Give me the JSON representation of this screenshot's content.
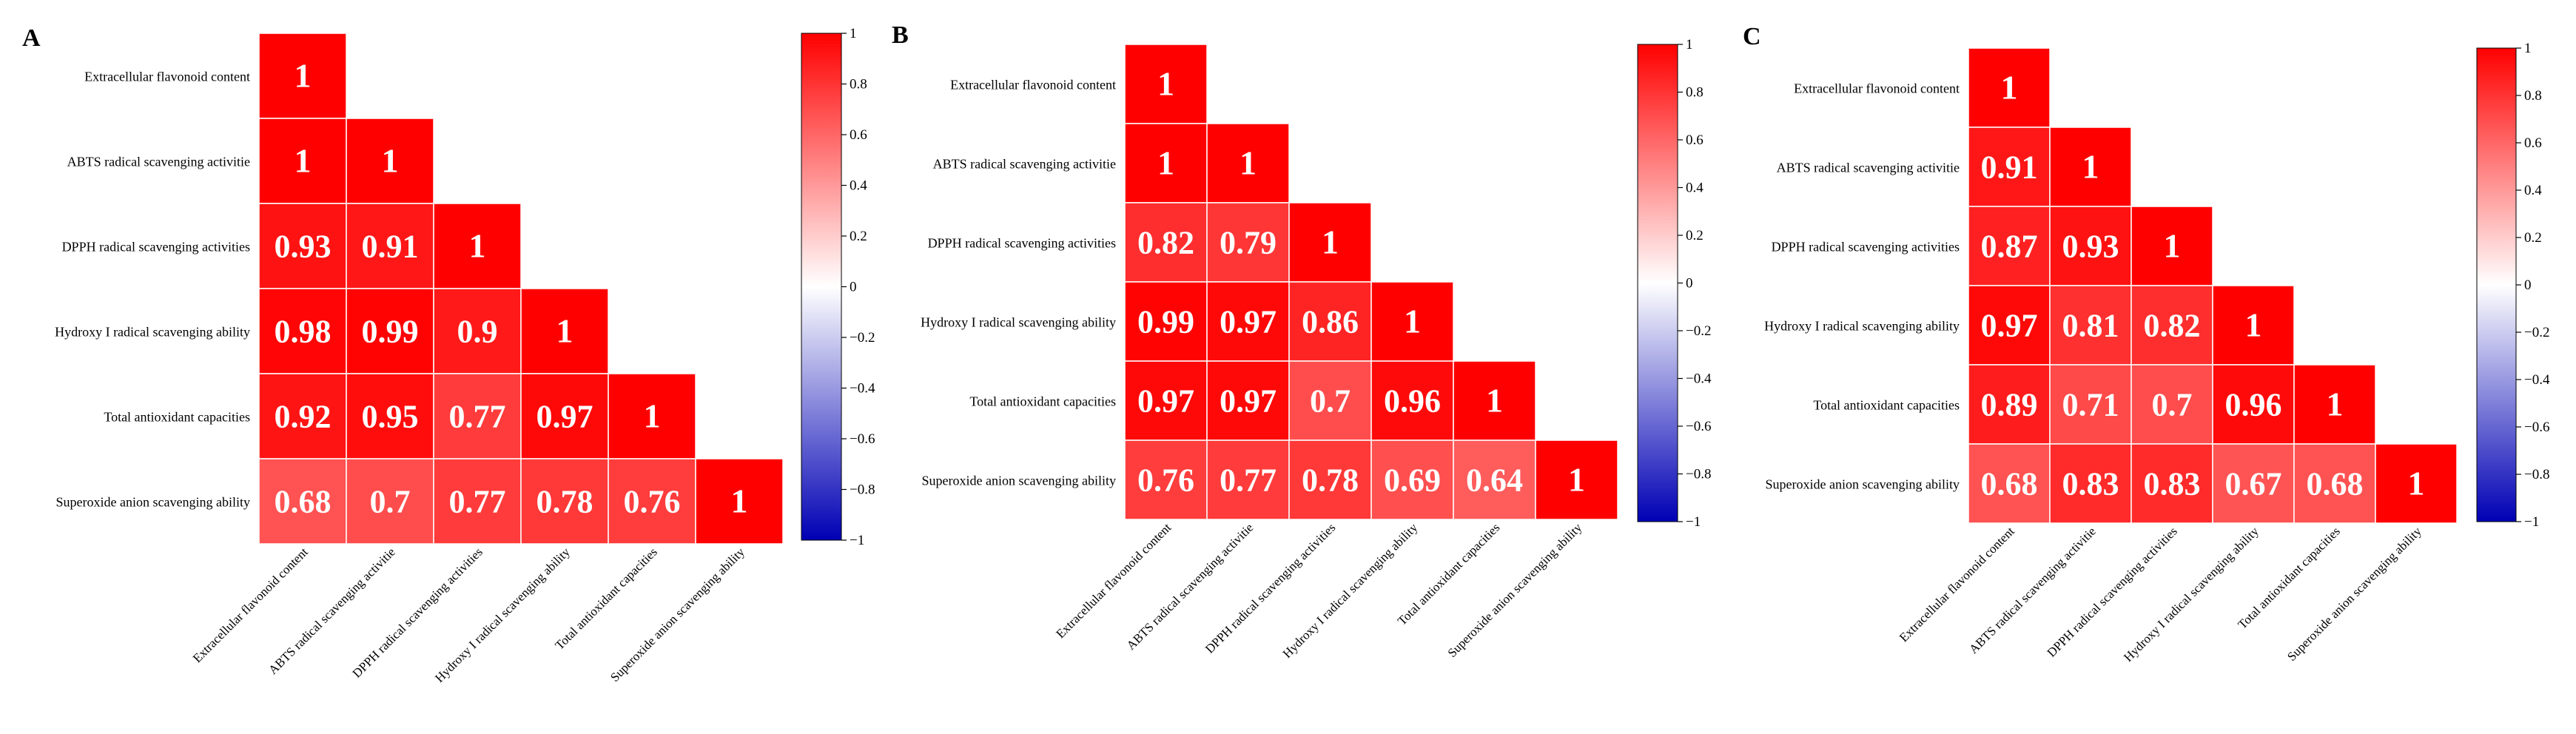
{
  "chart_data": [
    {
      "type": "heatmap",
      "panel_label": "A",
      "variables": [
        "Extracellular flavonoid content",
        "ABTS radical scavenging activitie",
        "DPPH radical scavenging activities",
        "Hydroxy I radical scavenging ability",
        "Total antioxidant capacities",
        "Superoxide anion scavenging ability"
      ],
      "matrix": [
        [
          1
        ],
        [
          1,
          1
        ],
        [
          0.93,
          0.91,
          1
        ],
        [
          0.98,
          0.99,
          0.9,
          1
        ],
        [
          0.92,
          0.95,
          0.77,
          0.97,
          1
        ],
        [
          0.68,
          0.7,
          0.77,
          0.78,
          0.76,
          1
        ]
      ],
      "colorbar": {
        "range": [
          -1,
          1
        ],
        "ticks": [
          "1",
          "0.8",
          "0.6",
          "0.4",
          "0.2",
          "0",
          "−0.2",
          "−0.4",
          "−0.6",
          "−0.8",
          "−1"
        ]
      }
    },
    {
      "type": "heatmap",
      "panel_label": "B",
      "variables": [
        "Extracellular flavonoid content",
        "ABTS radical scavenging activitie",
        "DPPH radical scavenging activities",
        "Hydroxy I radical scavenging ability",
        "Total antioxidant capacities",
        "Superoxide anion scavenging ability"
      ],
      "matrix": [
        [
          1
        ],
        [
          1,
          1
        ],
        [
          0.82,
          0.79,
          1
        ],
        [
          0.99,
          0.97,
          0.86,
          1
        ],
        [
          0.97,
          0.97,
          0.7,
          0.96,
          1
        ],
        [
          0.76,
          0.77,
          0.78,
          0.69,
          0.64,
          1
        ]
      ],
      "colorbar": {
        "range": [
          -1,
          1
        ],
        "ticks": [
          "1",
          "0.8",
          "0.6",
          "0.4",
          "0.2",
          "0",
          "−0.2",
          "−0.4",
          "−0.6",
          "−0.8",
          "−1"
        ]
      }
    },
    {
      "type": "heatmap",
      "panel_label": "C",
      "variables": [
        "Extracellular flavonoid content",
        "ABTS radical scavenging activitie",
        "DPPH radical scavenging activities",
        "Hydroxy I radical scavenging ability",
        "Total antioxidant capacities",
        "Superoxide anion scavenging ability"
      ],
      "matrix": [
        [
          1
        ],
        [
          0.91,
          1
        ],
        [
          0.87,
          0.93,
          1
        ],
        [
          0.97,
          0.81,
          0.82,
          1
        ],
        [
          0.89,
          0.71,
          0.7,
          0.96,
          1
        ],
        [
          0.68,
          0.83,
          0.83,
          0.67,
          0.68,
          1
        ]
      ],
      "colorbar": {
        "range": [
          -1,
          1
        ],
        "ticks": [
          "1",
          "0.8",
          "0.6",
          "0.4",
          "0.2",
          "0",
          "−0.2",
          "−0.4",
          "−0.6",
          "−0.8",
          "−1"
        ]
      }
    }
  ]
}
